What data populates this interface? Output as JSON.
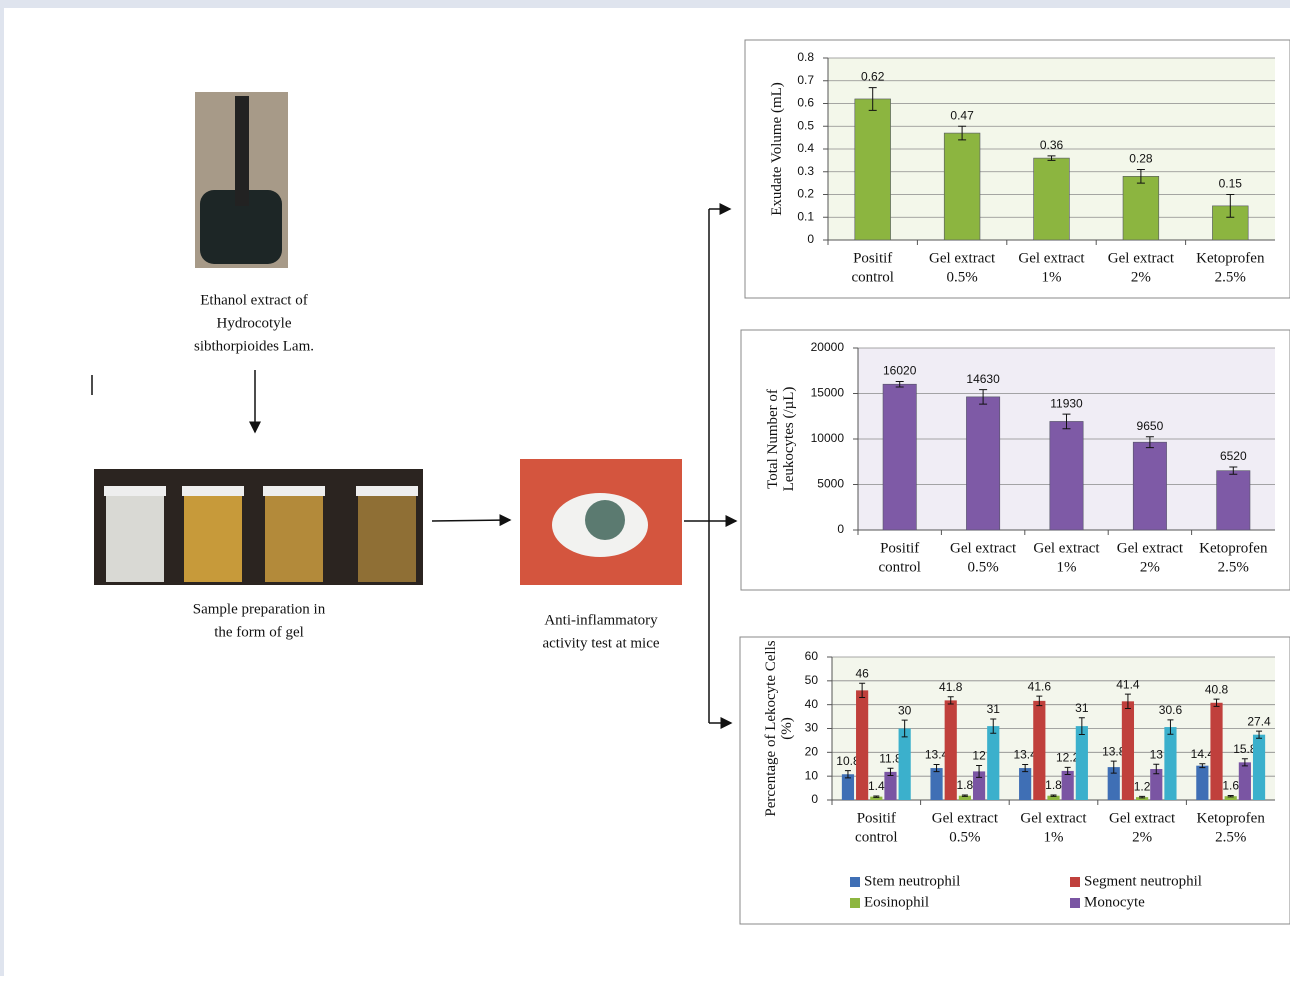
{
  "diagram": {
    "nodes": [
      {
        "label": [
          "Ethanol extract of",
          "Hydrocotyle",
          "sibthorpioides Lam."
        ]
      },
      {
        "label": [
          "Sample preparation in",
          "the form of gel"
        ]
      },
      {
        "label": [
          "Anti-inflammatory",
          "activity test at mice"
        ]
      }
    ]
  },
  "chart_data": [
    {
      "type": "bar",
      "ylabel": [
        "Exudate Volume (mL)"
      ],
      "categories": [
        [
          "Positif",
          "control"
        ],
        [
          "Gel extract",
          "0.5%"
        ],
        [
          "Gel extract",
          "1%"
        ],
        [
          "Gel extract",
          "2%"
        ],
        [
          "Ketoprofen",
          "2.5%"
        ]
      ],
      "values": [
        0.62,
        0.47,
        0.36,
        0.28,
        0.15
      ],
      "errors": [
        0.05,
        0.03,
        0.01,
        0.03,
        0.05
      ],
      "color": "#8cb540",
      "plot_color": "#f3f7ea",
      "grid": true,
      "ylim": [
        0,
        0.8
      ],
      "yticks": [
        0,
        0.1,
        0.2,
        0.3,
        0.4,
        0.5,
        0.6,
        0.7,
        0.8
      ]
    },
    {
      "type": "bar",
      "ylabel": [
        "Total Number of",
        "Leukocytes (/µL)"
      ],
      "categories": [
        [
          "Positif",
          "control"
        ],
        [
          "Gel extract",
          "0.5%"
        ],
        [
          "Gel extract",
          "1%"
        ],
        [
          "Gel extract",
          "2%"
        ],
        [
          "Ketoprofen",
          "2.5%"
        ]
      ],
      "values": [
        16020,
        14630,
        11930,
        9650,
        6520
      ],
      "errors": [
        300,
        800,
        800,
        600,
        400
      ],
      "color": "#7e5aa6",
      "plot_color": "#f0edf5",
      "grid": true,
      "ylim": [
        0,
        20000
      ],
      "yticks": [
        0,
        5000,
        10000,
        15000,
        20000
      ]
    },
    {
      "type": "bar",
      "ylabel": [
        "Percentage of Lekocyte Cells",
        "(%)"
      ],
      "categories": [
        [
          "Positif",
          "control"
        ],
        [
          "Gel extract",
          "0.5%"
        ],
        [
          "Gel extract",
          "1%"
        ],
        [
          "Gel extract",
          "2%"
        ],
        [
          "Ketoprofen",
          "2.5%"
        ]
      ],
      "series": [
        {
          "name": "Stem neutrophil",
          "color": "#3f6fb5",
          "values": [
            10.8,
            13.4,
            13.4,
            13.8,
            14.4
          ],
          "errors": [
            1.5,
            1.5,
            1.5,
            2.5,
            0.8
          ]
        },
        {
          "name": "Segment neutrophil",
          "color": "#c0403c",
          "values": [
            46,
            41.8,
            41.6,
            41.4,
            40.8
          ],
          "errors": [
            3,
            1.5,
            2,
            3,
            1.5
          ]
        },
        {
          "name": "Eosinophil",
          "color": "#8db640",
          "values": [
            1.4,
            1.8,
            1.8,
            1.2,
            1.6
          ],
          "errors": [
            0.3,
            0.3,
            0.3,
            0.3,
            0.3
          ]
        },
        {
          "name": "Monocyte",
          "color": "#7a55a3",
          "values": [
            11.8,
            12,
            12.2,
            13,
            15.8
          ],
          "errors": [
            1.5,
            2.5,
            1.5,
            2,
            1.5
          ]
        },
        {
          "color": "#3bb0cc",
          "values": [
            30,
            31,
            31,
            30.6,
            27.4
          ],
          "errors": [
            3.5,
            3,
            3.5,
            3,
            1.5
          ]
        }
      ],
      "plot_color": "#f3f6ec",
      "grid": true,
      "ylim": [
        0,
        60
      ],
      "yticks": [
        0,
        10,
        20,
        30,
        40,
        50,
        60
      ]
    }
  ]
}
